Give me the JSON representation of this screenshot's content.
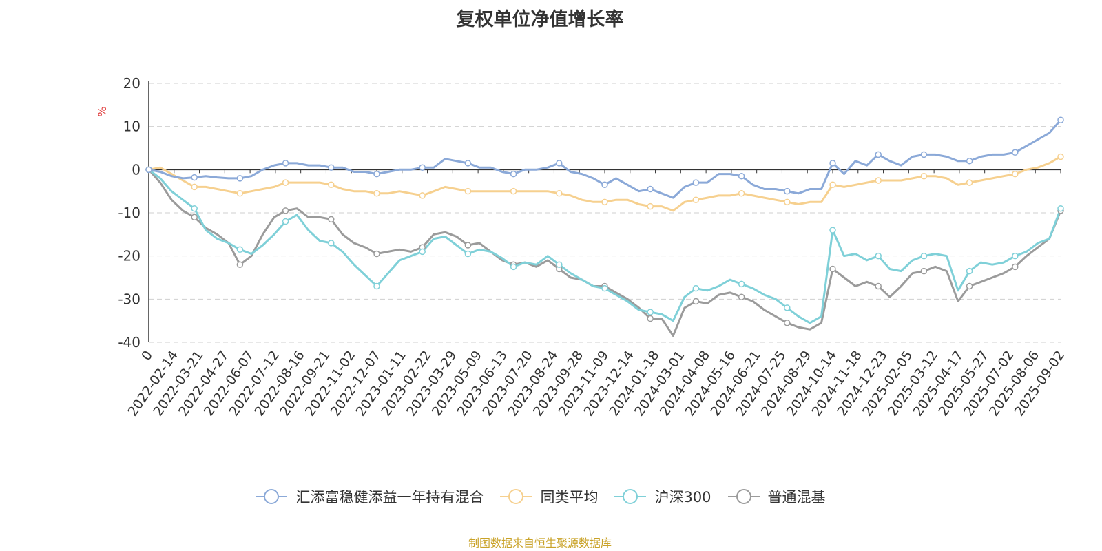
{
  "chart_data": {
    "type": "line",
    "title": "复权单位净值增长率",
    "ylabel": "%",
    "ylim": [
      -40,
      20
    ],
    "yticks": [
      20,
      10,
      0,
      -10,
      -20,
      -30,
      -40
    ],
    "grid": true,
    "legend_position": "bottom",
    "x_tick_labels": [
      "0",
      "2022-02-14",
      "2022-03-21",
      "2022-04-27",
      "2022-06-07",
      "2022-07-12",
      "2022-08-16",
      "2022-09-21",
      "2022-11-02",
      "2022-12-07",
      "2023-01-11",
      "2023-02-22",
      "2023-03-29",
      "2023-05-09",
      "2023-06-13",
      "2023-07-20",
      "2023-08-24",
      "2023-09-28",
      "2023-11-09",
      "2023-12-14",
      "2024-01-18",
      "2024-03-01",
      "2024-04-08",
      "2024-05-16",
      "2024-06-21",
      "2024-07-25",
      "2024-08-29",
      "2024-10-14",
      "2024-11-18",
      "2024-12-23",
      "2025-02-05",
      "2025-03-12",
      "2025-04-17",
      "2025-05-27",
      "2025-07-02",
      "2025-08-06",
      "2025-09-02"
    ],
    "x": [
      "0",
      "2022-01-10",
      "2022-02-14",
      "2022-03-01",
      "2022-03-10",
      "2022-03-21",
      "2022-04-08",
      "2022-04-15",
      "2022-04-27",
      "2022-05-12",
      "2022-06-07",
      "2022-06-24",
      "2022-07-04",
      "2022-07-12",
      "2022-07-25",
      "2022-08-16",
      "2022-09-01",
      "2022-09-21",
      "2022-10-11",
      "2022-10-31",
      "2022-11-02",
      "2022-11-15",
      "2022-12-07",
      "2022-12-23",
      "2023-01-11",
      "2023-02-01",
      "2023-02-22",
      "2023-03-10",
      "2023-03-29",
      "2023-04-20",
      "2023-05-09",
      "2023-05-31",
      "2023-06-13",
      "2023-07-07",
      "2023-07-20",
      "2023-08-07",
      "2023-08-24",
      "2023-09-12",
      "2023-09-28",
      "2023-10-25",
      "2023-11-09",
      "2023-11-28",
      "2023-12-14",
      "2024-01-04",
      "2024-01-18",
      "2024-02-05",
      "2024-03-01",
      "2024-03-20",
      "2024-04-08",
      "2024-04-26",
      "2024-05-16",
      "2024-06-04",
      "2024-06-21",
      "2024-07-10",
      "2024-07-25",
      "2024-08-12",
      "2024-08-29",
      "2024-09-18",
      "2024-09-27",
      "2024-10-08",
      "2024-10-14",
      "2024-10-30",
      "2024-11-18",
      "2024-12-05",
      "2024-12-23",
      "2025-01-13",
      "2025-02-05",
      "2025-02-21",
      "2025-03-12",
      "2025-03-31",
      "2025-04-03",
      "2025-04-07",
      "2025-04-17",
      "2025-05-08",
      "2025-05-27",
      "2025-06-13",
      "2025-07-02",
      "2025-07-18",
      "2025-08-06",
      "2025-08-20",
      "2025-09-02"
    ],
    "series": [
      {
        "name": "汇添富稳健添益一年持有混合",
        "color": "#8ba9d8",
        "values": [
          0,
          -0.5,
          -1.5,
          -2.0,
          -1.8,
          -1.5,
          -1.8,
          -2.0,
          -2.0,
          -1.5,
          0,
          1.0,
          1.5,
          1.5,
          1.0,
          1.0,
          0.5,
          0.5,
          -0.5,
          -0.5,
          -1.0,
          -0.5,
          0,
          0,
          0.5,
          0.5,
          2.5,
          2.0,
          1.5,
          0.5,
          0.5,
          -0.5,
          -1.0,
          0,
          0,
          0.5,
          1.5,
          -0.5,
          -1.0,
          -2.0,
          -3.5,
          -2.0,
          -3.5,
          -5.0,
          -4.5,
          -5.5,
          -6.5,
          -4.0,
          -3.0,
          -3.0,
          -1.0,
          -1.0,
          -1.5,
          -3.5,
          -4.5,
          -4.5,
          -5.0,
          -5.5,
          -4.5,
          -4.5,
          1.5,
          -1.0,
          2.0,
          1.0,
          3.5,
          2.0,
          1.0,
          3.0,
          3.5,
          3.5,
          3.0,
          2.0,
          2.0,
          3.0,
          3.5,
          3.5,
          4.0,
          5.5,
          7.0,
          8.5,
          11.5
        ]
      },
      {
        "name": "同类平均",
        "color": "#f6d08f",
        "values": [
          0,
          0.5,
          -1.0,
          -2.5,
          -4.0,
          -4.0,
          -4.5,
          -5.0,
          -5.5,
          -5.0,
          -4.5,
          -4.0,
          -3.0,
          -3.0,
          -3.0,
          -3.0,
          -3.5,
          -4.5,
          -5.0,
          -5.0,
          -5.5,
          -5.5,
          -5.0,
          -5.5,
          -6.0,
          -5.0,
          -4.0,
          -4.5,
          -5.0,
          -5.0,
          -5.0,
          -5.0,
          -5.0,
          -5.0,
          -5.0,
          -5.0,
          -5.5,
          -6.0,
          -7.0,
          -7.5,
          -7.5,
          -7.0,
          -7.0,
          -8.0,
          -8.5,
          -8.5,
          -9.5,
          -7.5,
          -7.0,
          -6.5,
          -6.0,
          -6.0,
          -5.5,
          -6.0,
          -6.5,
          -7.0,
          -7.5,
          -8.0,
          -7.5,
          -7.5,
          -3.5,
          -4.0,
          -3.5,
          -3.0,
          -2.5,
          -2.5,
          -2.5,
          -2.0,
          -1.5,
          -1.5,
          -2.0,
          -3.5,
          -3.0,
          -2.5,
          -2.0,
          -1.5,
          -1.0,
          0,
          0.5,
          1.5,
          3.0
        ]
      },
      {
        "name": "沪深300",
        "color": "#7fd0d8",
        "values": [
          0,
          -2.0,
          -5.0,
          -7.0,
          -9.0,
          -14.0,
          -16.0,
          -17.0,
          -18.5,
          -19.5,
          -17.5,
          -15.0,
          -12.0,
          -10.5,
          -14.0,
          -16.5,
          -17.0,
          -19.0,
          -22.0,
          -24.5,
          -27.0,
          -24.0,
          -21.0,
          -20.0,
          -19.0,
          -16.0,
          -15.5,
          -17.5,
          -19.5,
          -18.5,
          -19.0,
          -20.5,
          -22.5,
          -21.5,
          -22.0,
          -20.0,
          -22.0,
          -24.0,
          -25.5,
          -27.0,
          -27.5,
          -29.0,
          -30.5,
          -32.5,
          -33.0,
          -33.5,
          -35.0,
          -29.5,
          -27.5,
          -28.0,
          -27.0,
          -25.5,
          -26.5,
          -27.5,
          -29.0,
          -30.0,
          -32.0,
          -34.0,
          -35.5,
          -34.0,
          -14.0,
          -20.0,
          -19.5,
          -21.0,
          -20.0,
          -23.0,
          -23.5,
          -21.0,
          -20.0,
          -19.5,
          -20.0,
          -28.0,
          -23.5,
          -21.5,
          -22.0,
          -21.5,
          -20.0,
          -19.0,
          -17.0,
          -16.0,
          -9.0
        ]
      },
      {
        "name": "普通混基",
        "color": "#9b9b9b",
        "values": [
          0,
          -3.0,
          -7.0,
          -9.5,
          -11.0,
          -13.5,
          -15.0,
          -17.0,
          -22.0,
          -20.0,
          -15.0,
          -11.0,
          -9.5,
          -9.0,
          -11.0,
          -11.0,
          -11.5,
          -15.0,
          -17.0,
          -18.0,
          -19.5,
          -19.0,
          -18.5,
          -19.0,
          -18.0,
          -15.0,
          -14.5,
          -15.5,
          -17.5,
          -17.0,
          -19.0,
          -21.0,
          -22.0,
          -21.5,
          -22.5,
          -21.0,
          -23.0,
          -25.0,
          -25.5,
          -27.0,
          -27.0,
          -28.5,
          -30.0,
          -32.0,
          -34.5,
          -34.5,
          -38.5,
          -32.0,
          -30.5,
          -31.0,
          -29.0,
          -28.5,
          -29.5,
          -30.5,
          -32.5,
          -34.0,
          -35.5,
          -36.5,
          -37.0,
          -35.5,
          -23.0,
          -25.0,
          -27.0,
          -26.0,
          -27.0,
          -29.5,
          -27.0,
          -24.0,
          -23.5,
          -22.5,
          -23.5,
          -30.5,
          -27.0,
          -26.0,
          -25.0,
          -24.0,
          -22.5,
          -20.0,
          -18.0,
          -16.0,
          -9.5
        ]
      }
    ]
  },
  "legend": {
    "items": [
      {
        "label": "汇添富稳健添益一年持有混合"
      },
      {
        "label": "同类平均"
      },
      {
        "label": "沪深300"
      },
      {
        "label": "普通混基"
      }
    ]
  },
  "footer": {
    "source": "制图数据来自恒生聚源数据库"
  }
}
